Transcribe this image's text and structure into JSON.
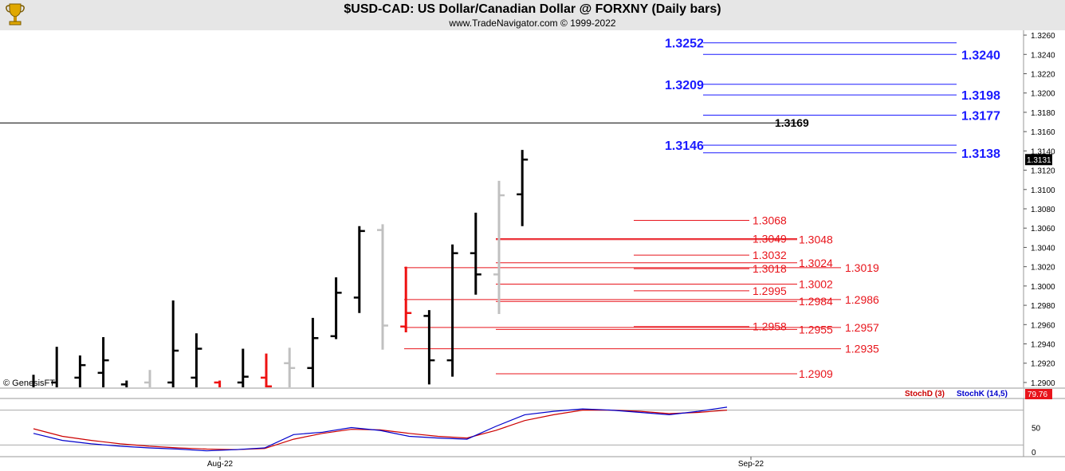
{
  "header": {
    "title": "$USD-CAD:  US Dollar/Canadian Dollar @ FORXNY  (Daily bars)",
    "subtitle": "www.TradeNavigator.com © 1999-2022",
    "credit": "© GenesisFT"
  },
  "colors": {
    "blue_level": "#1a1aff",
    "red_level": "#e8141b",
    "bar_black": "#000000",
    "bar_gray": "#c0c0c0",
    "bar_red": "#ee1111",
    "stoch_k": "#0000cc",
    "stoch_d": "#cc0000",
    "header_bg": "#e6e6e6"
  },
  "chart_data": {
    "type": "ohlc-bar",
    "price_axis": {
      "ylim": [
        1.2895,
        1.3265
      ],
      "ticks": [
        "1.3260",
        "1.3240",
        "1.3220",
        "1.3200",
        "1.3180",
        "1.3160",
        "1.3140",
        "1.3120",
        "1.3100",
        "1.3080",
        "1.3060",
        "1.3040",
        "1.3020",
        "1.3000",
        "1.2980",
        "1.2960",
        "1.2940",
        "1.2920",
        "1.2900"
      ],
      "last_price_label": "1.3131"
    },
    "time_axis": {
      "labels": [
        "Aug-22",
        "Sep-22"
      ]
    },
    "bars": [
      {
        "h": 1.2908,
        "l": 1.289,
        "o": 1.2895,
        "c": 1.2892,
        "color": "black"
      },
      {
        "h": 1.2937,
        "l": 1.289,
        "o": 1.29,
        "c": 1.2895,
        "color": "black"
      },
      {
        "h": 1.2928,
        "l": 1.289,
        "o": 1.2905,
        "c": 1.2918,
        "color": "black"
      },
      {
        "h": 1.2947,
        "l": 1.289,
        "o": 1.291,
        "c": 1.2923,
        "color": "black"
      },
      {
        "h": 1.2902,
        "l": 1.289,
        "o": 1.2898,
        "c": 1.2893,
        "color": "black"
      },
      {
        "h": 1.2913,
        "l": 1.289,
        "o": 1.29,
        "c": 1.2895,
        "color": "gray"
      },
      {
        "h": 1.2985,
        "l": 1.289,
        "o": 1.29,
        "c": 1.2933,
        "color": "black"
      },
      {
        "h": 1.2951,
        "l": 1.289,
        "o": 1.2905,
        "c": 1.2935,
        "color": "black"
      },
      {
        "h": 1.2902,
        "l": 1.289,
        "o": 1.29,
        "c": 1.2892,
        "color": "red"
      },
      {
        "h": 1.2935,
        "l": 1.289,
        "o": 1.29,
        "c": 1.2906,
        "color": "black"
      },
      {
        "h": 1.293,
        "l": 1.289,
        "o": 1.2905,
        "c": 1.2896,
        "color": "red"
      },
      {
        "h": 1.2936,
        "l": 1.289,
        "o": 1.292,
        "c": 1.2915,
        "color": "gray"
      },
      {
        "h": 1.2967,
        "l": 1.289,
        "o": 1.2915,
        "c": 1.2946,
        "color": "black"
      },
      {
        "h": 1.3009,
        "l": 1.2945,
        "o": 1.2948,
        "c": 1.2993,
        "color": "black"
      },
      {
        "h": 1.3062,
        "l": 1.2972,
        "o": 1.2988,
        "c": 1.3057,
        "color": "black"
      },
      {
        "h": 1.3064,
        "l": 1.2934,
        "o": 1.3058,
        "c": 1.2959,
        "color": "gray"
      },
      {
        "h": 1.302,
        "l": 1.2952,
        "o": 1.2958,
        "c": 1.2972,
        "color": "red"
      },
      {
        "h": 1.2975,
        "l": 1.2898,
        "o": 1.2969,
        "c": 1.2923,
        "color": "black"
      },
      {
        "h": 1.3043,
        "l": 1.2906,
        "o": 1.2923,
        "c": 1.3034,
        "color": "black"
      },
      {
        "h": 1.3076,
        "l": 1.2991,
        "o": 1.3034,
        "c": 1.3012,
        "color": "black"
      },
      {
        "h": 1.3109,
        "l": 1.2971,
        "o": 1.3012,
        "c": 1.3094,
        "color": "gray"
      },
      {
        "h": 1.3141,
        "l": 1.3062,
        "o": 1.3095,
        "c": 1.3131,
        "color": "black"
      }
    ],
    "horizontal_levels": [
      {
        "value": 1.3252,
        "label": "1.3252",
        "side": "left",
        "color": "blue"
      },
      {
        "value": 1.324,
        "label": "1.3240",
        "side": "right",
        "color": "blue"
      },
      {
        "value": 1.3209,
        "label": "1.3209",
        "side": "left",
        "color": "blue"
      },
      {
        "value": 1.3198,
        "label": "1.3198",
        "side": "right",
        "color": "blue"
      },
      {
        "value": 1.3177,
        "label": "1.3177",
        "side": "right",
        "color": "blue"
      },
      {
        "value": 1.3169,
        "label": "1.3169",
        "side": "right",
        "color": "black"
      },
      {
        "value": 1.3146,
        "label": "1.3146",
        "side": "left",
        "color": "blue"
      },
      {
        "value": 1.3138,
        "label": "1.3138",
        "side": "right",
        "color": "blue"
      },
      {
        "value": 1.3068,
        "label": "1.3068",
        "color": "red"
      },
      {
        "value": 1.3049,
        "label": "1.3049",
        "color": "red"
      },
      {
        "value": 1.3048,
        "label": "1.3048",
        "color": "red"
      },
      {
        "value": 1.3032,
        "label": "1.3032",
        "color": "red"
      },
      {
        "value": 1.3024,
        "label": "1.3024",
        "color": "red"
      },
      {
        "value": 1.3019,
        "label": "1.3019",
        "color": "red"
      },
      {
        "value": 1.3018,
        "label": "1.3018",
        "color": "red"
      },
      {
        "value": 1.3002,
        "label": "1.3002",
        "color": "red"
      },
      {
        "value": 1.2995,
        "label": "1.2995",
        "color": "red"
      },
      {
        "value": 1.2986,
        "label": "1.2986",
        "color": "red"
      },
      {
        "value": 1.2984,
        "label": "1.2984",
        "color": "red"
      },
      {
        "value": 1.2958,
        "label": "1.2958",
        "color": "red"
      },
      {
        "value": 1.2957,
        "label": "1.2957",
        "color": "red"
      },
      {
        "value": 1.2955,
        "label": "1.2955",
        "color": "red"
      },
      {
        "value": 1.2935,
        "label": "1.2935",
        "color": "red"
      },
      {
        "value": 1.2909,
        "label": "1.2909",
        "color": "red"
      }
    ],
    "stochastic": {
      "labels": {
        "d": "StochD (3)",
        "k": "StochK (14,5)"
      },
      "ylim": [
        0,
        100
      ],
      "ticks": [
        "50",
        "0"
      ],
      "last_value": "79.76",
      "k": [
        40,
        28,
        22,
        18,
        15,
        13,
        10,
        12,
        15,
        38,
        42,
        50,
        45,
        35,
        32,
        30,
        52,
        72,
        78,
        82,
        80,
        76,
        72,
        78,
        85
      ],
      "d": [
        48,
        35,
        28,
        22,
        18,
        15,
        13,
        12,
        14,
        30,
        40,
        47,
        46,
        40,
        35,
        32,
        45,
        62,
        72,
        80,
        80,
        78,
        74,
        76,
        80
      ]
    }
  }
}
